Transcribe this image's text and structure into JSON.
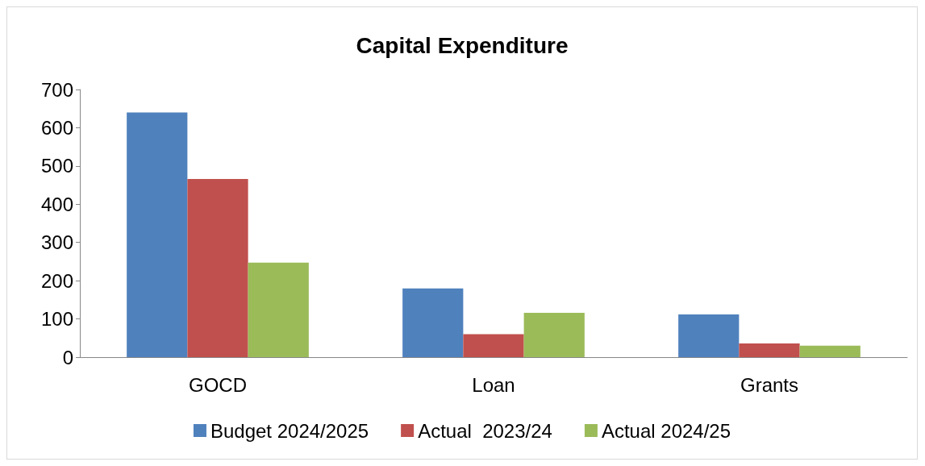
{
  "chart_data": {
    "type": "bar",
    "title": "Capital Expenditure",
    "categories": [
      "GOCD",
      "Loan",
      "Grants"
    ],
    "series": [
      {
        "name": "Budget 2024/2025",
        "color": "#4f81bd",
        "values": [
          640,
          180,
          112
        ]
      },
      {
        "name": "Actual  2023/24",
        "color": "#c0504d",
        "values": [
          466,
          60,
          36
        ]
      },
      {
        "name": "Actual 2024/25",
        "color": "#9bbb59",
        "values": [
          247,
          116,
          30
        ]
      }
    ],
    "ylim": [
      0,
      700
    ],
    "yticks": [
      0,
      100,
      200,
      300,
      400,
      500,
      600,
      700
    ],
    "grid": false,
    "legend": "bottom"
  }
}
